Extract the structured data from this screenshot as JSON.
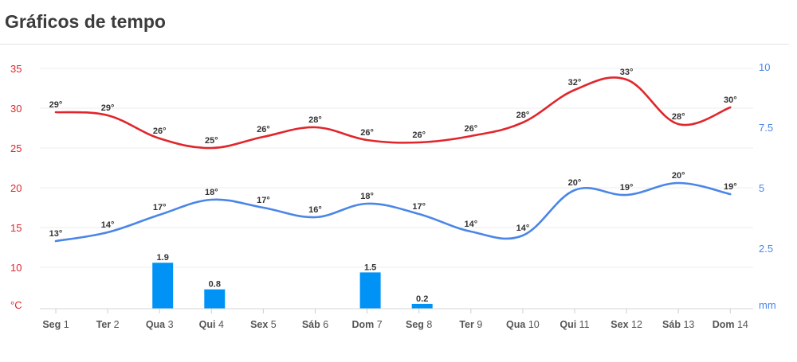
{
  "header": {
    "title": "Gráficos de tempo"
  },
  "chart_data": {
    "type": "line",
    "title": "Gráficos de tempo",
    "categories": [
      {
        "day": "Seg",
        "num": "1"
      },
      {
        "day": "Ter",
        "num": "2"
      },
      {
        "day": "Qua",
        "num": "3"
      },
      {
        "day": "Qui",
        "num": "4"
      },
      {
        "day": "Sex",
        "num": "5"
      },
      {
        "day": "Sáb",
        "num": "6"
      },
      {
        "day": "Dom",
        "num": "7"
      },
      {
        "day": "Seg",
        "num": "8"
      },
      {
        "day": "Ter",
        "num": "9"
      },
      {
        "day": "Qua",
        "num": "10"
      },
      {
        "day": "Qui",
        "num": "11"
      },
      {
        "day": "Sex",
        "num": "12"
      },
      {
        "day": "Sáb",
        "num": "13"
      },
      {
        "day": "Dom",
        "num": "14"
      }
    ],
    "series": [
      {
        "name": "max-temperature",
        "color": "#e0262c",
        "unit": "°",
        "values": [
          29,
          29,
          26,
          25,
          26,
          28,
          26,
          26,
          26,
          28,
          32,
          33,
          28,
          30
        ],
        "curve": [
          29.5,
          29.1,
          26.2,
          25.0,
          26.4,
          27.6,
          26.0,
          25.7,
          26.5,
          28.2,
          32.3,
          33.6,
          28.0,
          30.1
        ]
      },
      {
        "name": "min-temperature",
        "color": "#4a86e8",
        "unit": "°",
        "values": [
          13,
          14,
          17,
          18,
          17,
          16,
          18,
          17,
          14,
          14,
          20,
          19,
          20,
          19
        ],
        "curve": [
          13.3,
          14.4,
          16.6,
          18.5,
          17.5,
          16.3,
          18.0,
          16.7,
          14.5,
          14.0,
          19.7,
          19.1,
          20.6,
          19.2
        ]
      }
    ],
    "precipitation": {
      "name": "precipitation",
      "color": "#0093f5",
      "unit": "mm",
      "values": [
        null,
        null,
        1.9,
        0.8,
        null,
        null,
        1.5,
        0.2,
        null,
        null,
        null,
        null,
        null,
        null
      ],
      "labels": [
        "",
        "",
        "1.9",
        "0.8",
        "",
        "",
        "1.5",
        "0.2",
        "",
        "",
        "",
        "",
        "",
        ""
      ]
    },
    "y_left": {
      "unit_label": "°C",
      "ticks": [
        "35",
        "30",
        "25",
        "20",
        "15",
        "10"
      ],
      "tick_values": [
        35,
        30,
        25,
        20,
        15,
        10
      ],
      "range": [
        5,
        35
      ],
      "color": "#e0262c"
    },
    "y_right": {
      "unit_label": "mm",
      "ticks": [
        "10",
        "7.5",
        "5",
        "2.5"
      ],
      "tick_values": [
        10,
        7.5,
        5,
        2.5
      ],
      "range": [
        0,
        10
      ],
      "color": "#4a86e8"
    },
    "grid": true,
    "grid_color": "#ececec"
  }
}
